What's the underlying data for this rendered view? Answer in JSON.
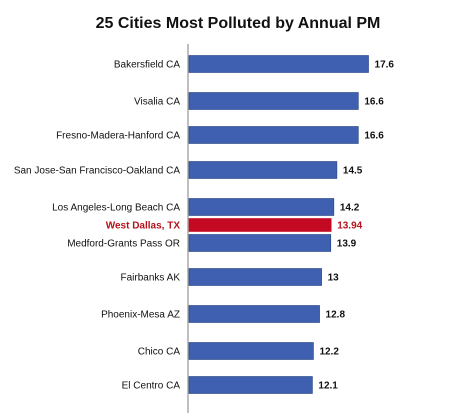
{
  "chart_data": {
    "type": "bar",
    "orientation": "horizontal",
    "title": "25 Cities Most Polluted by Annual PM",
    "categories": [
      "Bakersfield CA",
      "Visalia CA",
      "Fresno-Madera-Hanford CA",
      "San Jose-San Francisco-Oakland CA",
      "Los Angeles-Long Beach CA",
      "West Dallas, TX",
      "Medford-Grants Pass OR",
      "Fairbanks AK",
      "Phoenix-Mesa AZ",
      "Chico CA",
      "El Centro CA"
    ],
    "values": [
      17.6,
      16.6,
      16.6,
      14.5,
      14.2,
      13.94,
      13.9,
      13,
      12.8,
      12.2,
      12.1
    ],
    "value_labels": [
      "17.6",
      "16.6",
      "16.6",
      "14.5",
      "14.2",
      "13.94",
      "13.9",
      "13",
      "12.8",
      "12.2",
      "12.1"
    ],
    "highlight_category": "West Dallas, TX",
    "xlim": [
      0,
      20
    ],
    "xlabel": "",
    "ylabel": "",
    "grid": false,
    "legend": "none",
    "colors": {
      "bar": "#3f5fb0",
      "bar_border": "#25417f",
      "highlight_bar": "#c40a22",
      "highlight_text": "#b5121b",
      "label_text": "#111111",
      "axis": "#7f7f7f"
    }
  }
}
